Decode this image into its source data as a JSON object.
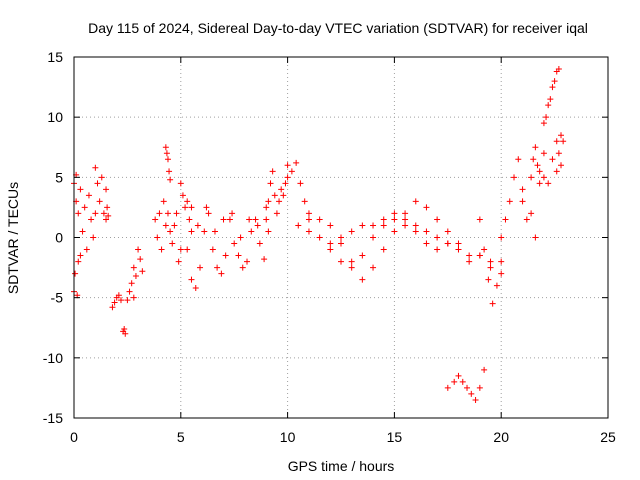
{
  "chart_data": {
    "type": "scatter",
    "title": "Day 115 of 2024, Sidereal Day-to-day VTEC variation (SDTVAR) for receiver iqal",
    "xlabel": "GPS time / hours",
    "ylabel": "SDTVAR / TECUs",
    "xlim": [
      0,
      25
    ],
    "ylim": [
      -15,
      15
    ],
    "x_ticks": [
      "0",
      "5",
      "10",
      "15",
      "20",
      "25"
    ],
    "y_ticks": [
      "15",
      "10",
      "5",
      "0",
      "-5",
      "-10",
      "-15"
    ],
    "x_tick_values": [
      0,
      5,
      10,
      15,
      20,
      25
    ],
    "y_tick_values": [
      15,
      10,
      5,
      0,
      -5,
      -10,
      -15
    ],
    "grid": true,
    "marker": "+",
    "color": "#ff0000",
    "series": [
      {
        "name": "SDTVAR",
        "segments": [
          {
            "x": [
              0.0,
              0.1,
              0.2,
              0.3,
              0.4,
              0.5,
              0.6,
              0.7,
              0.8,
              0.9,
              1.0
            ],
            "y": [
              -4.5,
              3.0,
              -2.0,
              4.0,
              0.5,
              2.5,
              -1.0,
              3.5,
              1.5,
              0.0,
              2.0
            ]
          },
          {
            "x": [
              0.0,
              0.05,
              0.1,
              0.15,
              0.2,
              0.3
            ],
            "y": [
              4.5,
              -3.0,
              5.2,
              -4.8,
              2.0,
              -1.5
            ]
          },
          {
            "x": [
              1.0,
              1.1,
              1.2,
              1.3,
              1.4,
              1.5
            ],
            "y": [
              5.8,
              4.5,
              3.0,
              5.0,
              2.0,
              4.0
            ]
          },
          {
            "x": [
              1.5,
              1.55,
              1.6
            ],
            "y": [
              1.5,
              2.5,
              1.8
            ]
          },
          {
            "x": [
              1.8,
              1.9,
              2.0,
              2.1,
              2.2
            ],
            "y": [
              -5.8,
              -5.4,
              -5.0,
              -4.8,
              -5.2
            ]
          },
          {
            "x": [
              2.3,
              2.35,
              2.4
            ],
            "y": [
              -7.8,
              -7.6,
              -8.0
            ]
          },
          {
            "x": [
              2.5,
              2.6,
              2.7,
              2.8
            ],
            "y": [
              -5.2,
              -4.5,
              -3.8,
              -5.0
            ]
          },
          {
            "x": [
              2.8,
              2.9,
              3.0,
              3.1,
              3.2
            ],
            "y": [
              -2.5,
              -3.2,
              -1.0,
              -1.8,
              -2.8
            ]
          },
          {
            "x": [
              3.8,
              3.9,
              4.0,
              4.1,
              4.2,
              4.3,
              4.4,
              4.5,
              4.6,
              4.7,
              4.8,
              4.9,
              5.0
            ],
            "y": [
              1.5,
              0.0,
              2.0,
              -1.0,
              3.0,
              1.0,
              2.0,
              0.5,
              -0.5,
              1.0,
              2.0,
              -2.0,
              -1.0
            ]
          },
          {
            "x": [
              4.3,
              4.35,
              4.4,
              4.45,
              4.5
            ],
            "y": [
              7.5,
              7.0,
              6.5,
              5.5,
              4.8
            ]
          },
          {
            "x": [
              5.0,
              5.1,
              5.2,
              5.3,
              5.4,
              5.5
            ],
            "y": [
              4.5,
              3.5,
              2.5,
              3.0,
              1.5,
              0.5
            ]
          },
          {
            "x": [
              5.3,
              5.5,
              5.7,
              5.9,
              6.1,
              6.3,
              6.5,
              6.7,
              6.9,
              7.1
            ],
            "y": [
              -1.0,
              -3.5,
              -4.2,
              -2.5,
              0.5,
              2.0,
              -1.0,
              -2.5,
              -3.0,
              -1.5
            ]
          },
          {
            "x": [
              5.5,
              5.8,
              6.2,
              6.6,
              7.0,
              7.4,
              7.8,
              8.2,
              8.6,
              9.0
            ],
            "y": [
              2.5,
              1.0,
              2.5,
              0.5,
              1.5,
              2.0,
              0.0,
              1.5,
              1.0,
              2.5
            ]
          },
          {
            "x": [
              7.3,
              7.5,
              7.7,
              7.9,
              8.1,
              8.3,
              8.5,
              8.7,
              8.9,
              9.1
            ],
            "y": [
              1.5,
              -0.5,
              -1.5,
              -2.5,
              -2.0,
              0.5,
              1.5,
              -0.5,
              -1.8,
              0.5
            ]
          },
          {
            "x": [
              9.0,
              9.1,
              9.2,
              9.3,
              9.4,
              9.5,
              9.6,
              9.7,
              9.8,
              9.9,
              10.0
            ],
            "y": [
              1.5,
              3.0,
              4.5,
              5.5,
              3.5,
              2.0,
              3.0,
              4.0,
              3.5,
              4.5,
              5.0
            ]
          },
          {
            "x": [
              10.0,
              10.2,
              10.4,
              10.6,
              10.8,
              11.0
            ],
            "y": [
              6.0,
              5.5,
              6.2,
              4.5,
              3.0,
              1.5
            ]
          },
          {
            "x": [
              10.5,
              11.0,
              11.5,
              12.0,
              12.5,
              13.0,
              13.5,
              14.0,
              14.5,
              15.0,
              15.5,
              16.0,
              16.5,
              17.0,
              17.5,
              18.0,
              18.5,
              19.0,
              19.5
            ],
            "y": [
              1.0,
              0.5,
              0.0,
              -0.5,
              0.0,
              0.5,
              1.0,
              1.0,
              1.5,
              2.0,
              1.5,
              1.0,
              0.5,
              0.0,
              -0.5,
              -1.0,
              -1.5,
              -1.5,
              -2.0
            ]
          },
          {
            "x": [
              11.0,
              11.5,
              12.0,
              12.5,
              13.0,
              13.5,
              14.0,
              14.5,
              15.0,
              15.5,
              16.0,
              16.5,
              17.0,
              17.5,
              18.0
            ],
            "y": [
              2.0,
              1.5,
              1.0,
              -0.5,
              -2.0,
              -3.5,
              -2.5,
              -1.0,
              0.5,
              2.0,
              3.0,
              2.5,
              1.5,
              0.5,
              -0.5
            ]
          },
          {
            "x": [
              12.0,
              12.5,
              13.0,
              13.5,
              14.0,
              14.5,
              15.0,
              15.5,
              16.0,
              16.5,
              17.0,
              17.5,
              18.0,
              18.5,
              19.0,
              19.5,
              20.0
            ],
            "y": [
              -1.0,
              -2.0,
              -2.5,
              -1.5,
              0.0,
              1.0,
              1.5,
              1.0,
              0.5,
              -0.5,
              -1.0,
              -0.5,
              -1.0,
              -2.0,
              -1.5,
              -2.5,
              -3.0
            ]
          },
          {
            "x": [
              17.5,
              17.8,
              18.0,
              18.2,
              18.4,
              18.6,
              18.8,
              19.0,
              19.2
            ],
            "y": [
              -12.5,
              -12.0,
              -11.5,
              -12.0,
              -12.5,
              -13.0,
              -13.5,
              -12.5,
              -11.0
            ]
          },
          {
            "x": [
              19.0,
              19.2,
              19.4,
              19.6,
              19.8,
              20.0
            ],
            "y": [
              1.5,
              -1.0,
              -3.5,
              -5.5,
              -4.0,
              -2.0
            ]
          },
          {
            "x": [
              20.0,
              20.2,
              20.4,
              20.6,
              20.8,
              21.0
            ],
            "y": [
              0.0,
              1.5,
              3.0,
              5.0,
              6.5,
              4.0
            ]
          },
          {
            "x": [
              21.0,
              21.2,
              21.4,
              21.6,
              21.8,
              22.0
            ],
            "y": [
              3.0,
              1.5,
              2.0,
              0.0,
              5.5,
              7.0
            ]
          },
          {
            "x": [
              21.4,
              21.5,
              21.6,
              21.7,
              21.8
            ],
            "y": [
              5.0,
              6.5,
              7.5,
              6.0,
              4.5
            ]
          },
          {
            "x": [
              22.0,
              22.1,
              22.2,
              22.3,
              22.4,
              22.5,
              22.6,
              22.7
            ],
            "y": [
              9.5,
              10.0,
              11.0,
              11.5,
              12.5,
              13.0,
              13.8,
              14.0
            ]
          },
          {
            "x": [
              22.0,
              22.2,
              22.4,
              22.6,
              22.8
            ],
            "y": [
              5.0,
              4.5,
              6.5,
              8.0,
              8.5
            ]
          },
          {
            "x": [
              22.6,
              22.7,
              22.8,
              22.9
            ],
            "y": [
              5.5,
              7.0,
              6.0,
              8.0
            ]
          }
        ]
      }
    ]
  }
}
